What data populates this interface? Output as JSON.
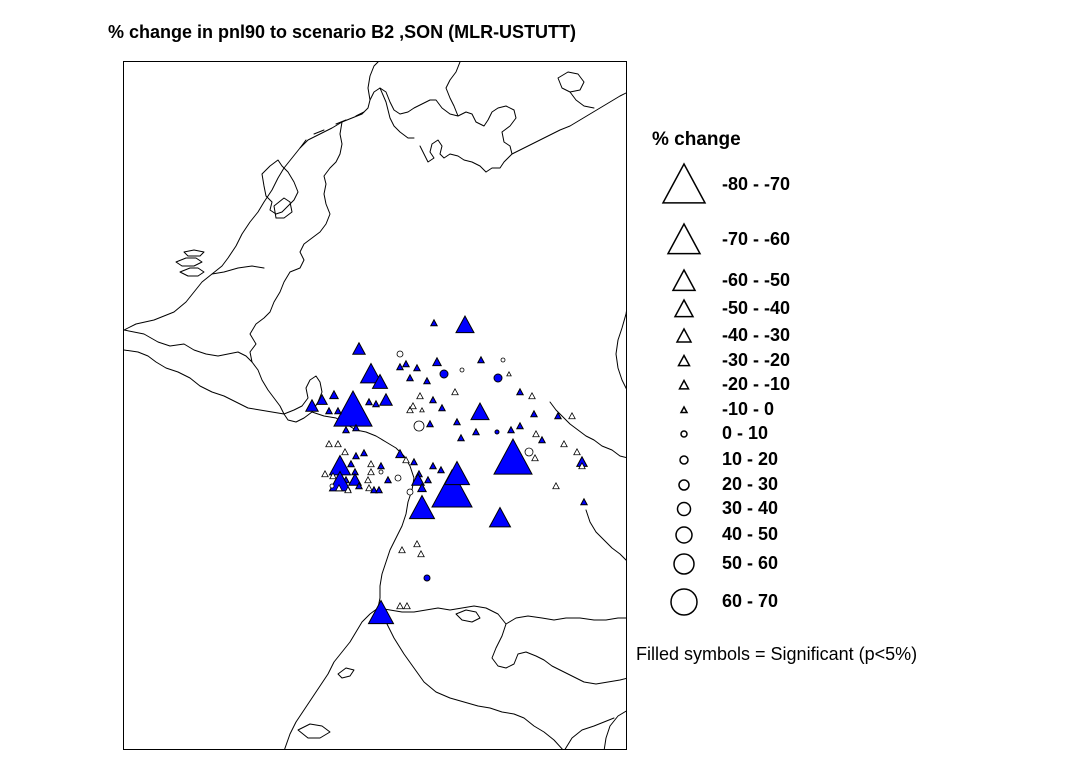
{
  "title": "% change in pnl90 to scenario B2 ,SON (MLR-USTUTT)",
  "legend": {
    "title": "% change",
    "items": [
      {
        "label": "-80 - -70",
        "shape": "triangle",
        "size_rank": 8
      },
      {
        "label": "-70 - -60",
        "shape": "triangle",
        "size_rank": 7
      },
      {
        "label": "-60 - -50",
        "shape": "triangle",
        "size_rank": 6
      },
      {
        "label": "-50 - -40",
        "shape": "triangle",
        "size_rank": 5
      },
      {
        "label": "-40 - -30",
        "shape": "triangle",
        "size_rank": 4
      },
      {
        "label": "-30 - -20",
        "shape": "triangle",
        "size_rank": 3
      },
      {
        "label": "-20 - -10",
        "shape": "triangle",
        "size_rank": 2
      },
      {
        "label": "-10 - 0",
        "shape": "triangle",
        "size_rank": 1
      },
      {
        "label": "0 - 10",
        "shape": "circle",
        "size_rank": 1
      },
      {
        "label": "10 - 20",
        "shape": "circle",
        "size_rank": 2
      },
      {
        "label": "20 - 30",
        "shape": "circle",
        "size_rank": 3
      },
      {
        "label": "30 - 40",
        "shape": "circle",
        "size_rank": 4
      },
      {
        "label": "40 - 50",
        "shape": "circle",
        "size_rank": 5
      },
      {
        "label": "50 - 60",
        "shape": "circle",
        "size_rank": 6
      },
      {
        "label": "60 - 70",
        "shape": "circle",
        "size_rank": 7
      }
    ],
    "note": "Filled symbols = Significant (p<5%)"
  },
  "colors": {
    "significant_fill": "#0000ff",
    "outline": "#000000",
    "background": "#ffffff"
  }
}
